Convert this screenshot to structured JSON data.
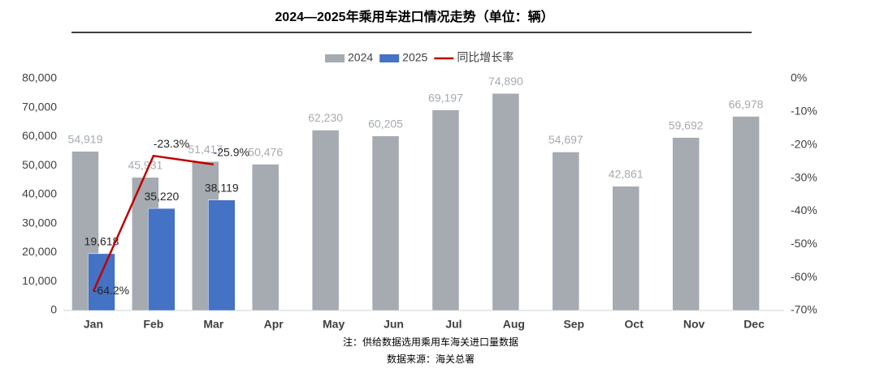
{
  "chart_data": {
    "type": "bar",
    "title": "2024—2025年乘用车进口情况走势（单位：辆）",
    "categories": [
      "Jan",
      "Feb",
      "Mar",
      "Apr",
      "May",
      "Jun",
      "Jul",
      "Aug",
      "Sep",
      "Oct",
      "Nov",
      "Dec"
    ],
    "series": [
      {
        "name": "2024",
        "type": "bar",
        "color": "#a5abb0",
        "values": [
          54919,
          45931,
          51417,
          50476,
          62230,
          60205,
          69197,
          74890,
          54697,
          42861,
          59692,
          66978
        ],
        "value_labels": [
          "54,919",
          "45,931",
          "51,417",
          "50,476",
          "62,230",
          "60,205",
          "69,197",
          "74,890",
          "54,697",
          "42,861",
          "59,692",
          "66,978"
        ]
      },
      {
        "name": "2025",
        "type": "bar",
        "color": "#4472c4",
        "values": [
          19618,
          35220,
          38119,
          null,
          null,
          null,
          null,
          null,
          null,
          null,
          null,
          null
        ],
        "value_labels": [
          "19,618",
          "35,220",
          "38,119",
          null,
          null,
          null,
          null,
          null,
          null,
          null,
          null,
          null
        ]
      },
      {
        "name": "同比增长率",
        "type": "line",
        "axis": "y2",
        "color": "#c00000",
        "values": [
          -64.2,
          -23.3,
          -25.9,
          null,
          null,
          null,
          null,
          null,
          null,
          null,
          null,
          null
        ],
        "value_labels": [
          "-64.2%",
          "-23.3%",
          "-25.9%",
          null,
          null,
          null,
          null,
          null,
          null,
          null,
          null,
          null
        ]
      }
    ],
    "ylim": [
      0,
      80000
    ],
    "yticks": [
      0,
      {
        "value": 10000,
        "label": "10,000"
      },
      {
        "value": 20000,
        "label": "20,000"
      },
      {
        "value": 30000,
        "label": "30,000"
      },
      {
        "value": 40000,
        "label": "40,000"
      },
      {
        "value": 50000,
        "label": "50,000"
      },
      {
        "value": 60000,
        "label": "60,000"
      },
      {
        "value": 70000,
        "label": "70,000"
      },
      {
        "value": 80000,
        "label": "80,000"
      }
    ],
    "y2lim": [
      -70,
      0
    ],
    "y2ticks": [
      {
        "value": 0,
        "label": "0%"
      },
      {
        "value": -10,
        "label": "-10%"
      },
      {
        "value": -20,
        "label": "-20%"
      },
      {
        "value": -30,
        "label": "-30%"
      },
      {
        "value": -40,
        "label": "-40%"
      },
      {
        "value": -50,
        "label": "-50%"
      },
      {
        "value": -60,
        "label": "-60%"
      },
      {
        "value": -70,
        "label": "-70%"
      }
    ],
    "grid": false,
    "legend": "top",
    "notes": [
      "注：供给数据选用乘用车海关进口量数据",
      "数据来源：海关总署"
    ]
  }
}
